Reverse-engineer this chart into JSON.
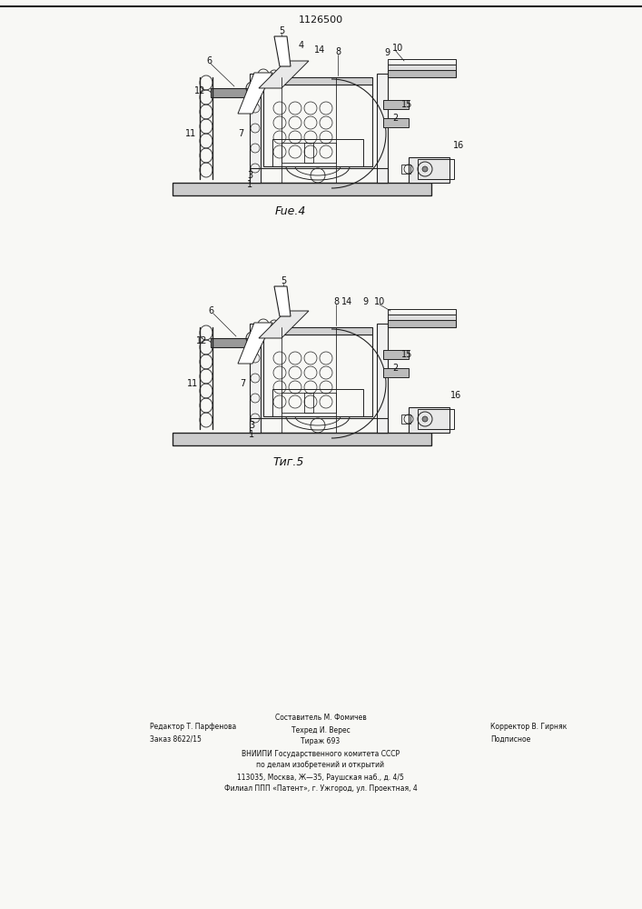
{
  "title_text": "1126500",
  "fig4_label": "Fue.4",
  "fig5_label": "Τиг.5",
  "footer_line1_left": "Редактор Т. Парфенова",
  "footer_line2_left": "Заказ 8622/15",
  "footer_line1_center": "Составитель М. Фомичев",
  "footer_line2_center": "Техред И. Верес",
  "footer_line3_center": "Тираж 693",
  "footer_line1_right": "Корректор В. Гирняк",
  "footer_line2_right": "Подписное",
  "footer_vniiipi1": "ВНИИПИ Государственного комитета СССР",
  "footer_vniiipi2": "по делам изобретений и открытий",
  "footer_vniiipi3": "113035, Москва, Ж—35, Раушская наб., д. 4/5",
  "footer_vniiipi4": "Филиал ППП «Патент», г. Ужгород, ул. Проектная, 4",
  "bg_color": "#f8f8f5",
  "line_color": "#222222",
  "text_color": "#111111"
}
